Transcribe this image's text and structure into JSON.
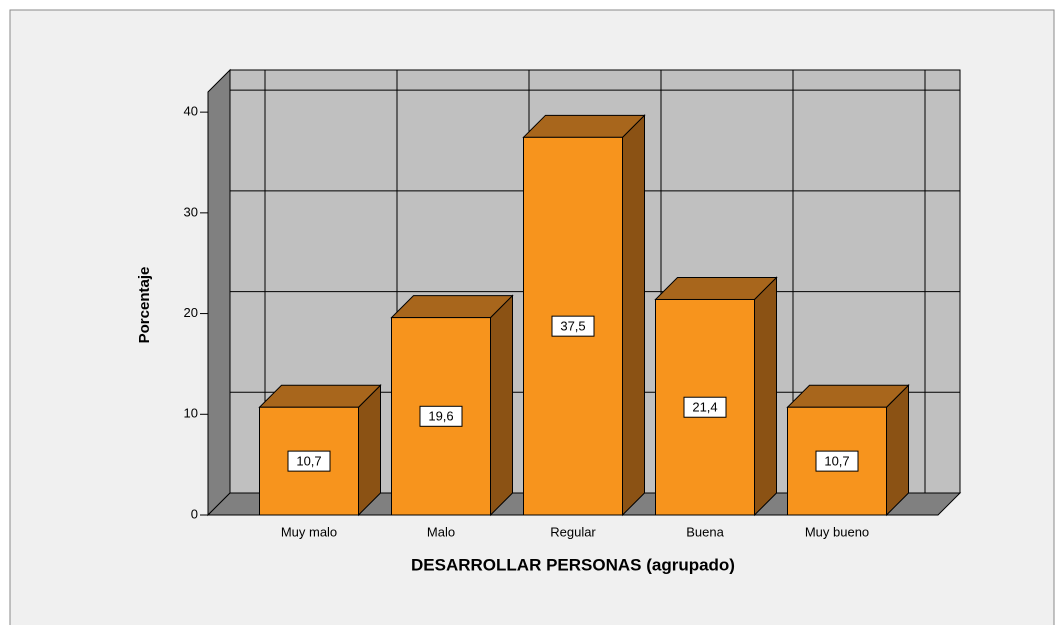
{
  "chart_data": {
    "type": "bar3d",
    "x_label": "DESARROLLAR PERSONAS (agrupado)",
    "y_label": "Porcentaje",
    "categories": [
      "Muy malo",
      "Malo",
      "Regular",
      "Buena",
      "Muy bueno"
    ],
    "values": [
      10.7,
      19.6,
      37.5,
      21.4,
      10.7
    ],
    "value_labels": [
      "10,7",
      "19,6",
      "37,5",
      "21,4",
      "10,7"
    ],
    "color": "#f7941d",
    "ylim": [
      0,
      42
    ],
    "yticks": [
      0,
      10,
      20,
      30,
      40
    ],
    "grid": true
  }
}
